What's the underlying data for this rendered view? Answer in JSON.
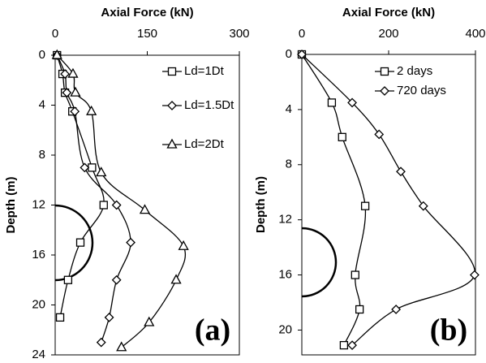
{
  "chart_data": [
    {
      "type": "line",
      "label": "(a)",
      "x_label": "Axial Force (kN)",
      "y_label": "Depth (m)",
      "xlim": [
        0,
        300
      ],
      "xticks": [
        0,
        150,
        300
      ],
      "ylim": [
        0,
        24
      ],
      "yticks": [
        0,
        4,
        8,
        12,
        16,
        20,
        24
      ],
      "y_inverted": true,
      "series": [
        {
          "name": "Ld=1Dt",
          "marker": "square",
          "color": "#000000",
          "x": [
            3,
            12,
            16,
            28,
            60,
            79,
            41,
            21,
            8
          ],
          "y": [
            0,
            1.5,
            3,
            4.5,
            9,
            12,
            15,
            18,
            21
          ]
        },
        {
          "name": "Ld=1.5Dt",
          "marker": "diamond",
          "color": "#000000",
          "x": [
            3,
            16,
            19,
            32,
            48,
            100,
            123,
            100,
            88,
            75
          ],
          "y": [
            0,
            1.5,
            3,
            4.5,
            9,
            12,
            15,
            18,
            21,
            23
          ]
        },
        {
          "name": "Ld=2Dt",
          "marker": "triangle",
          "color": "#000000",
          "x": [
            3,
            29,
            33,
            59,
            75,
            146,
            209,
            197,
            153,
            108
          ],
          "y": [
            0,
            1.5,
            3,
            4.5,
            9.4,
            12.4,
            15.3,
            18,
            21.4,
            23.4
          ]
        }
      ]
    },
    {
      "type": "line",
      "label": "(b)",
      "x_label": "Axial Force (kN)",
      "y_label": "Depth (m)",
      "xlim": [
        0,
        400
      ],
      "xticks": [
        0,
        200,
        400
      ],
      "ylim": [
        0,
        21.8
      ],
      "yticks": [
        0,
        4,
        8,
        12,
        16,
        20
      ],
      "y_inverted": true,
      "series": [
        {
          "name": "2 days",
          "marker": "square",
          "color": "#000000",
          "x": [
            0,
            69,
            93,
            146,
            123,
            133,
            97
          ],
          "y": [
            0,
            3.5,
            6,
            11,
            16,
            18.5,
            21.1
          ]
        },
        {
          "name": "720 days",
          "marker": "diamond",
          "color": "#000000",
          "x": [
            0,
            116,
            178,
            228,
            280,
            398,
            217,
            116
          ],
          "y": [
            0,
            3.5,
            5.8,
            8.5,
            11,
            16,
            18.5,
            21.1
          ]
        }
      ]
    }
  ]
}
